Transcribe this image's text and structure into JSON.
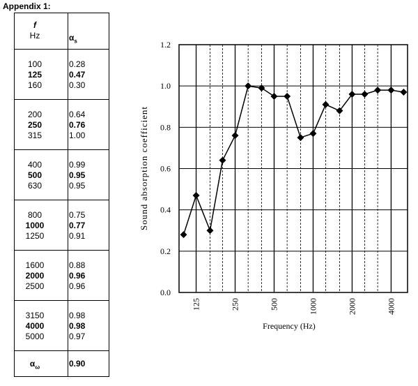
{
  "appendix_title": "Appendix 1:",
  "table": {
    "header": {
      "f_symbol": "f",
      "f_unit": "Hz",
      "alpha_symbol": "α",
      "alpha_sub": "s"
    },
    "groups": [
      {
        "rows": [
          {
            "f": "100",
            "a": "0.28",
            "bold": false
          },
          {
            "f": "125",
            "a": "0.47",
            "bold": true
          },
          {
            "f": "160",
            "a": "0.30",
            "bold": false
          }
        ]
      },
      {
        "rows": [
          {
            "f": "200",
            "a": "0.64",
            "bold": false
          },
          {
            "f": "250",
            "a": "0.76",
            "bold": true
          },
          {
            "f": "315",
            "a": "1.00",
            "bold": false
          }
        ]
      },
      {
        "rows": [
          {
            "f": "400",
            "a": "0.99",
            "bold": false
          },
          {
            "f": "500",
            "a": "0.95",
            "bold": true
          },
          {
            "f": "630",
            "a": "0.95",
            "bold": false
          }
        ]
      },
      {
        "rows": [
          {
            "f": "800",
            "a": "0.75",
            "bold": false
          },
          {
            "f": "1000",
            "a": "0.77",
            "bold": true
          },
          {
            "f": "1250",
            "a": "0.91",
            "bold": false
          }
        ]
      },
      {
        "rows": [
          {
            "f": "1600",
            "a": "0.88",
            "bold": false
          },
          {
            "f": "2000",
            "a": "0.96",
            "bold": true
          },
          {
            "f": "2500",
            "a": "0.96",
            "bold": false
          }
        ]
      },
      {
        "rows": [
          {
            "f": "3150",
            "a": "0.98",
            "bold": false
          },
          {
            "f": "4000",
            "a": "0.98",
            "bold": true
          },
          {
            "f": "5000",
            "a": "0.97",
            "bold": false
          }
        ]
      }
    ],
    "footer": {
      "label_symbol": "α",
      "label_sub": "ω",
      "value": "0.90"
    }
  },
  "chart_data": {
    "type": "line",
    "xlabel": "Frequency (Hz)",
    "ylabel": "Sound absorption coefficient",
    "x_scale": "log",
    "x": [
      100,
      125,
      160,
      200,
      250,
      315,
      400,
      500,
      630,
      800,
      1000,
      1250,
      1600,
      2000,
      2500,
      3150,
      4000,
      5000
    ],
    "values": [
      0.28,
      0.47,
      0.3,
      0.64,
      0.76,
      1.0,
      0.99,
      0.95,
      0.95,
      0.75,
      0.77,
      0.91,
      0.88,
      0.96,
      0.96,
      0.98,
      0.98,
      0.97
    ],
    "x_ticks": [
      "125",
      "250",
      "500",
      "1000",
      "2000",
      "4000"
    ],
    "y_ticks": [
      "0.0",
      "0.2",
      "0.4",
      "0.6",
      "0.8",
      "1.0",
      "1.2"
    ],
    "ylim": [
      0,
      1.2
    ],
    "marker": "diamond",
    "grid": true,
    "line_color": "#000000"
  }
}
